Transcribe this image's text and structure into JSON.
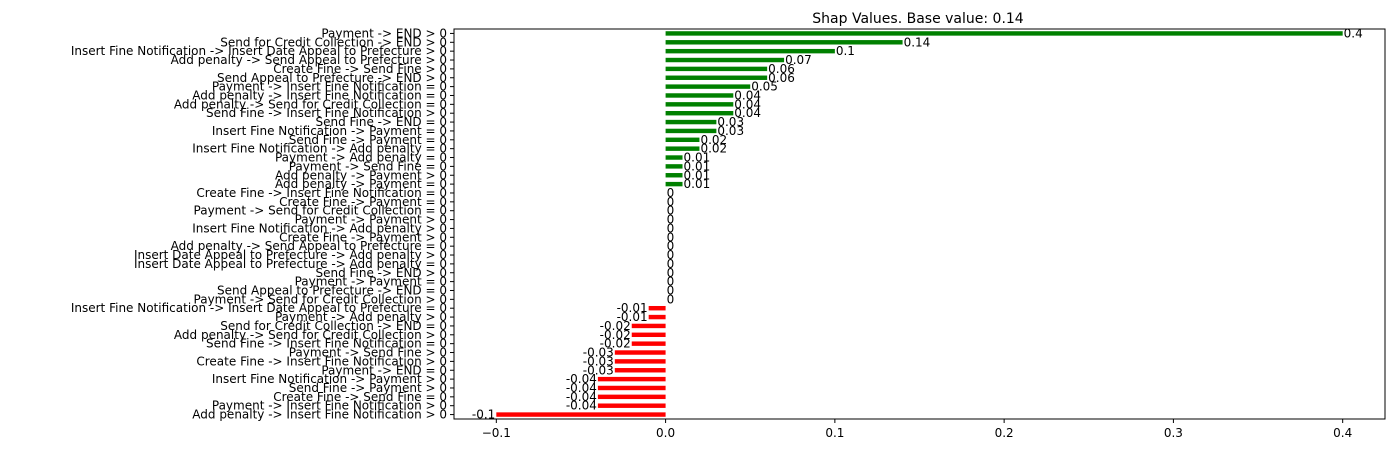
{
  "chart_data": {
    "type": "bar",
    "orientation": "horizontal",
    "title": "Shap Values. Base value: 0.14",
    "xlabel": "",
    "ylabel": "",
    "xlim": [
      -0.125,
      0.425
    ],
    "xticks": [
      -0.1,
      0.0,
      0.1,
      0.2,
      0.3,
      0.4
    ],
    "xtick_labels": [
      "−0.1",
      "0.0",
      "0.1",
      "0.2",
      "0.3",
      "0.4"
    ],
    "grid": false,
    "legend": "none",
    "positive_color": "#008000",
    "negative_color": "#ff0000",
    "categories": [
      "Payment -> END > 0",
      "Send for Credit Collection -> END > 0",
      "Insert Fine Notification -> Insert Date Appeal to Prefecture > 0",
      "Add penalty -> Send Appeal to Prefecture > 0",
      "Create Fine -> Send Fine > 0",
      "Send Appeal to Prefecture -> END > 0",
      "Payment -> Insert Fine Notification = 0",
      "Add penalty -> Insert Fine Notification = 0",
      "Add penalty -> Send for Credit Collection = 0",
      "Send Fine -> Insert Fine Notification > 0",
      "Send Fine -> END = 0",
      "Insert Fine Notification -> Payment = 0",
      "Send Fine -> Payment = 0",
      "Insert Fine Notification -> Add penalty = 0",
      "Payment -> Add penalty = 0",
      "Payment -> Send Fine = 0",
      "Add penalty -> Payment > 0",
      "Add penalty -> Payment = 0",
      "Create Fine -> Insert Fine Notification = 0",
      "Create Fine -> Payment = 0",
      "Payment -> Send for Credit Collection = 0",
      "Payment -> Payment > 0",
      "Insert Fine Notification -> Add penalty > 0",
      "Create Fine -> Payment > 0",
      "Add penalty -> Send Appeal to Prefecture = 0",
      "Insert Date Appeal to Prefecture -> Add penalty > 0",
      "Insert Date Appeal to Prefecture -> Add penalty = 0",
      "Send Fine -> END > 0",
      "Payment -> Payment = 0",
      "Send Appeal to Prefecture -> END = 0",
      "Payment -> Send for Credit Collection > 0",
      "Insert Fine Notification -> Insert Date Appeal to Prefecture = 0",
      "Payment -> Add penalty > 0",
      "Send for Credit Collection -> END = 0",
      "Add penalty -> Send for Credit Collection > 0",
      "Send Fine -> Insert Fine Notification = 0",
      "Payment -> Send Fine > 0",
      "Create Fine -> Insert Fine Notification > 0",
      "Payment -> END = 0",
      "Insert Fine Notification -> Payment > 0",
      "Send Fine -> Payment > 0",
      "Create Fine -> Send Fine = 0",
      "Payment -> Insert Fine Notification > 0",
      "Add penalty -> Insert Fine Notification > 0"
    ],
    "values": [
      0.4,
      0.14,
      0.1,
      0.07,
      0.06,
      0.06,
      0.05,
      0.04,
      0.04,
      0.04,
      0.03,
      0.03,
      0.02,
      0.02,
      0.01,
      0.01,
      0.01,
      0.01,
      0,
      0,
      0,
      0,
      0,
      0,
      0,
      0,
      0,
      0,
      0,
      0,
      0,
      -0.01,
      -0.01,
      -0.02,
      -0.02,
      -0.02,
      -0.03,
      -0.03,
      -0.03,
      -0.04,
      -0.04,
      -0.04,
      -0.04,
      -0.1
    ],
    "value_labels": [
      "0.4",
      "0.14",
      "0.1",
      "0.07",
      "0.06",
      "0.06",
      "0.05",
      "0.04",
      "0.04",
      "0.04",
      "0.03",
      "0.03",
      "0.02",
      "0.02",
      "0.01",
      "0.01",
      "0.01",
      "0.01",
      "0",
      "0",
      "0",
      "0",
      "0",
      "0",
      "0",
      "0",
      "0",
      "0",
      "0",
      "0",
      "0",
      "-0.01",
      "-0.01",
      "-0.02",
      "-0.02",
      "-0.02",
      "-0.03",
      "-0.03",
      "-0.03",
      "-0.04",
      "-0.04",
      "-0.04",
      "-0.04",
      "-0.1"
    ]
  }
}
